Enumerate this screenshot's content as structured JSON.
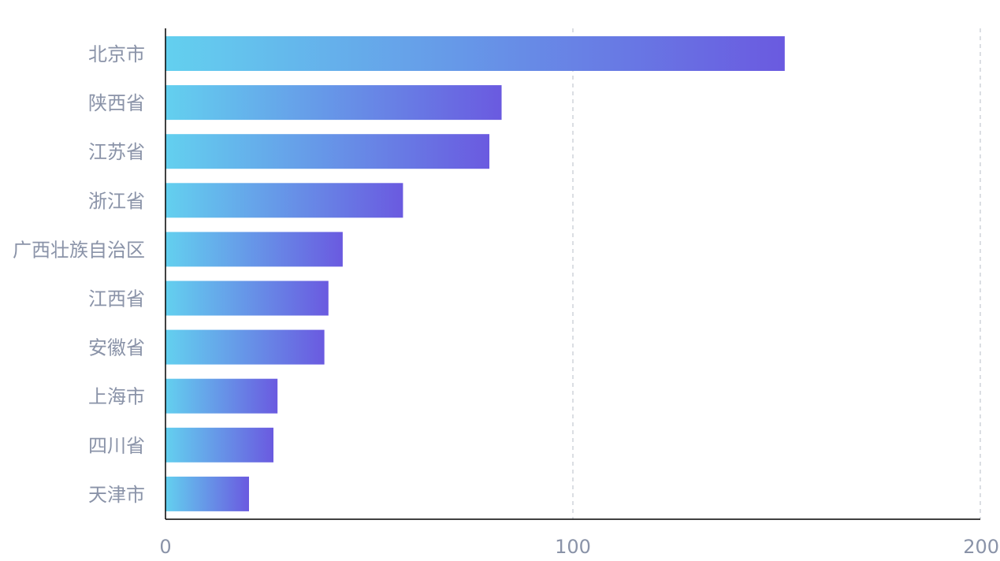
{
  "chart_data": {
    "type": "bar",
    "orientation": "horizontal",
    "categories": [
      "北京市",
      "陕西省",
      "江苏省",
      "浙江省",
      "广西壮族自治区",
      "江西省",
      "安徽省",
      "上海市",
      "四川省",
      "天津市"
    ],
    "values": [
      152,
      82.5,
      79.5,
      58.3,
      43.5,
      40,
      39,
      27.5,
      26.5,
      20.5
    ],
    "xlim": [
      0,
      200
    ],
    "xticks": [
      "0",
      "100",
      "200"
    ],
    "grid": "vertical dashed",
    "colors": {
      "gradient_start": "#63d0ef",
      "gradient_end": "#6a5ae0",
      "axis": "#000000",
      "grid": "#cfd3da",
      "label": "#8a93a8"
    }
  }
}
